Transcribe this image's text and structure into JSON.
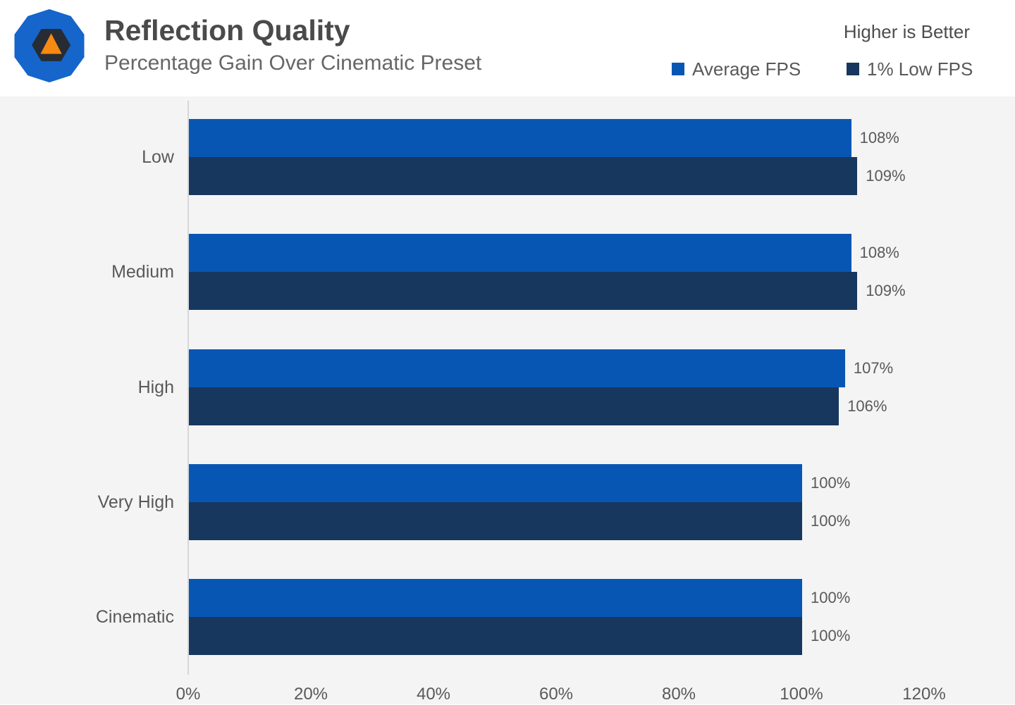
{
  "header": {
    "title": "Reflection Quality",
    "subtitle": "Percentage Gain Over Cinematic Preset",
    "note": "Higher is Better"
  },
  "legend": {
    "items": [
      {
        "label": "Average FPS",
        "color": "#0856b4"
      },
      {
        "label": "1% Low FPS",
        "color": "#17375e"
      }
    ]
  },
  "chart_data": {
    "type": "bar",
    "orientation": "horizontal",
    "title": "Reflection Quality",
    "subtitle": "Percentage Gain Over Cinematic Preset",
    "note": "Higher is Better",
    "categories": [
      "Low",
      "Medium",
      "High",
      "Very High",
      "Cinematic"
    ],
    "series": [
      {
        "name": "Average FPS",
        "color": "#0856b4",
        "values": [
          108,
          108,
          107,
          100,
          100
        ]
      },
      {
        "name": "1% Low FPS",
        "color": "#17375e",
        "values": [
          109,
          109,
          106,
          100,
          100
        ]
      }
    ],
    "value_suffix": "%",
    "xlabel": "",
    "ylabel": "",
    "xlim": [
      0,
      120
    ],
    "x_ticks": [
      "0%",
      "20%",
      "40%",
      "60%",
      "80%",
      "100%",
      "120%"
    ],
    "grid": false,
    "legend_position": "top-right",
    "data_labels": true
  },
  "colors": {
    "header_bg": "#ffffff",
    "plot_bg": "#f4f4f5",
    "axis_line": "#d5d7da",
    "logo_blue": "#1565cb",
    "logo_dark": "#272c34",
    "logo_orange": "#f78a10",
    "title_text": "#4a4a4a",
    "label_text": "#595959"
  }
}
